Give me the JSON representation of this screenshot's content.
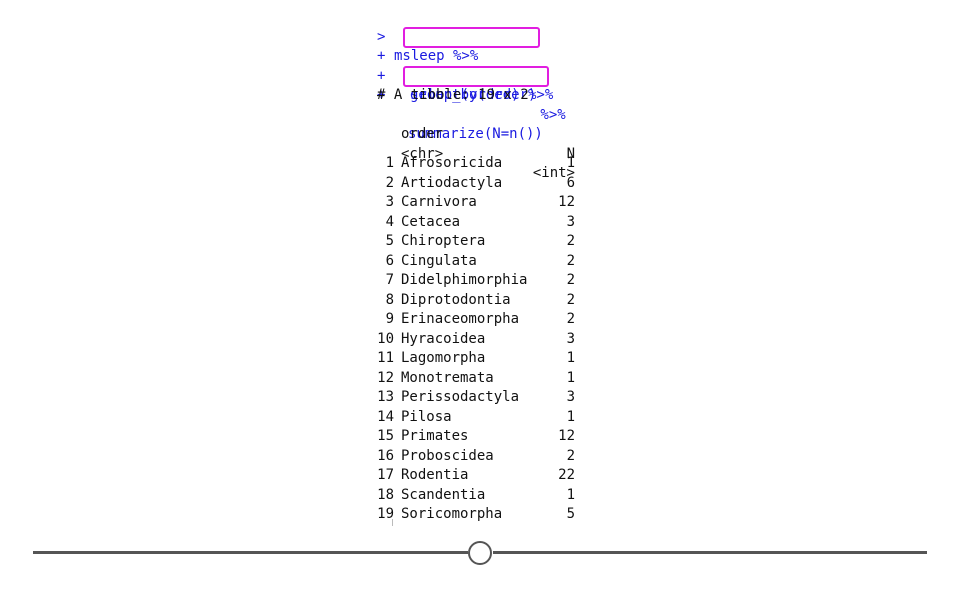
{
  "console": {
    "commands": [
      {
        "prompt": ">",
        "code": "msleep %>%"
      },
      {
        "prompt": "+",
        "code": "group_by(order)",
        "suffix": " %>%"
      },
      {
        "prompt": "+",
        "code": "select(order) %>%"
      },
      {
        "prompt": "+",
        "code": "summarize(N=n())"
      }
    ],
    "tibble_header": "# A tibble: 19 x 2",
    "columns": {
      "name": "order",
      "name_type": "<chr>",
      "count": "N",
      "count_type": "<int>"
    },
    "rows": [
      {
        "idx": "1",
        "order": "Afrosoricida",
        "n": "1"
      },
      {
        "idx": "2",
        "order": "Artiodactyla",
        "n": "6"
      },
      {
        "idx": "3",
        "order": "Carnivora",
        "n": "12"
      },
      {
        "idx": "4",
        "order": "Cetacea",
        "n": "3"
      },
      {
        "idx": "5",
        "order": "Chiroptera",
        "n": "2"
      },
      {
        "idx": "6",
        "order": "Cingulata",
        "n": "2"
      },
      {
        "idx": "7",
        "order": "Didelphimorphia",
        "n": "2"
      },
      {
        "idx": "8",
        "order": "Diprotodontia",
        "n": "2"
      },
      {
        "idx": "9",
        "order": "Erinaceomorpha",
        "n": "2"
      },
      {
        "idx": "10",
        "order": "Hyracoidea",
        "n": "3"
      },
      {
        "idx": "11",
        "order": "Lagomorpha",
        "n": "1"
      },
      {
        "idx": "12",
        "order": "Monotremata",
        "n": "1"
      },
      {
        "idx": "13",
        "order": "Perissodactyla",
        "n": "3"
      },
      {
        "idx": "14",
        "order": "Pilosa",
        "n": "1"
      },
      {
        "idx": "15",
        "order": "Primates",
        "n": "12"
      },
      {
        "idx": "16",
        "order": "Proboscidea",
        "n": "2"
      },
      {
        "idx": "17",
        "order": "Rodentia",
        "n": "22"
      },
      {
        "idx": "18",
        "order": "Scandentia",
        "n": "1"
      },
      {
        "idx": "19",
        "order": "Soricomorpha",
        "n": "5"
      }
    ]
  },
  "colors": {
    "command_text": "#1a1ae0",
    "highlight_box": "#e11ee0",
    "timeline": "#555555"
  },
  "timeline": {
    "progress": 0.5
  }
}
